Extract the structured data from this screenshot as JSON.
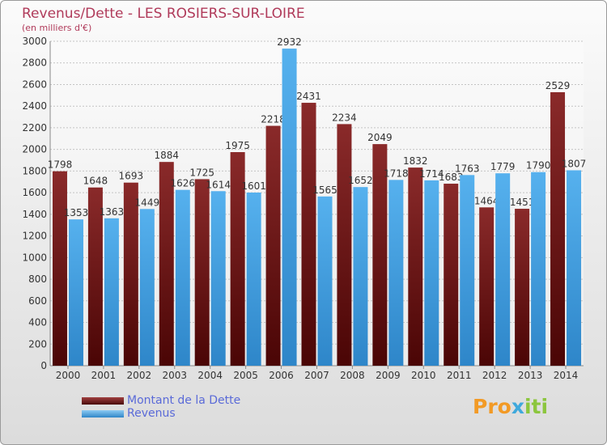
{
  "title": "Revenus/Dette - LES ROSIERS-SUR-LOIRE",
  "subtitle": "(en milliers d'€)",
  "colors": {
    "debt": "#7a1f1f",
    "revenue": "#45a5e6",
    "title": "#b03a5a",
    "legend_text": "#5a6ad8"
  },
  "legend": [
    {
      "label": "Montant de la Dette",
      "color": "#7a1f1f"
    },
    {
      "label": "Revenus",
      "color": "#45a5e6"
    }
  ],
  "logo": {
    "text": "Proxiti",
    "part1": "Pro",
    "part2": "x",
    "part3": "iti"
  },
  "chart_data": {
    "type": "bar",
    "title": "Revenus/Dette - LES ROSIERS-SUR-LOIRE",
    "ylabel": "(en milliers d'€)",
    "xlabel": "",
    "ylim": [
      0,
      3000
    ],
    "yticks": [
      0,
      200,
      400,
      600,
      800,
      1000,
      1200,
      1400,
      1600,
      1800,
      2000,
      2200,
      2400,
      2600,
      2800,
      3000
    ],
    "grid": true,
    "legend_position": "bottom-left",
    "categories": [
      "2000",
      "2001",
      "2002",
      "2003",
      "2004",
      "2005",
      "2006",
      "2007",
      "2008",
      "2009",
      "2010",
      "2011",
      "2012",
      "2013",
      "2014"
    ],
    "series": [
      {
        "name": "Montant de la Dette",
        "color": "#7a1f1f",
        "values": [
          1798,
          1648,
          1693,
          1884,
          1725,
          1975,
          2218,
          2431,
          2234,
          2049,
          1832,
          1683,
          1464,
          1451,
          2529
        ],
        "labels": [
          "1798",
          "1648",
          "1693",
          "1884",
          "1725",
          "1975",
          "2218",
          "2431",
          "2234",
          "2049",
          "1832",
          "1683",
          "1464",
          "1451",
          "2529"
        ]
      },
      {
        "name": "Revenus",
        "color": "#45a5e6",
        "values": [
          1353,
          1363,
          1449,
          1626,
          1614,
          1601,
          2932,
          1565,
          1652,
          1718,
          1714,
          1763,
          1779,
          1790,
          1807
        ],
        "labels": [
          "1353",
          "1363",
          "1449",
          "1626",
          "1614",
          "1601",
          "2932",
          "1565",
          "1652",
          "1718",
          "1714",
          "1763",
          "1779",
          "1790",
          "1807"
        ]
      }
    ]
  }
}
